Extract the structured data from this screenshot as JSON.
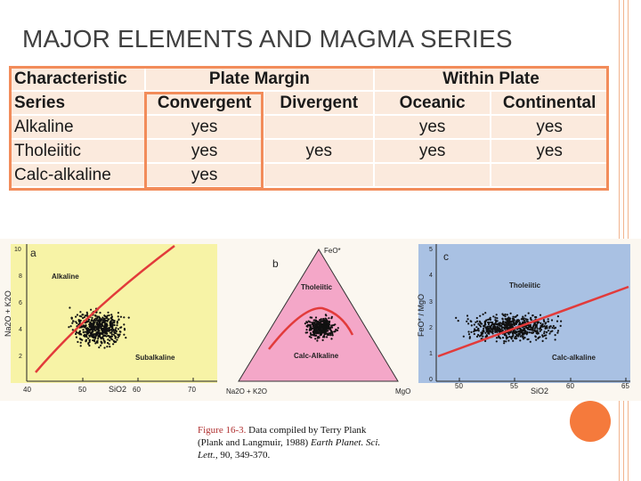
{
  "slide": {
    "title": "MAJOR ELEMENTS AND MAGMA SERIES"
  },
  "table": {
    "header1": [
      "Characteristic",
      "Plate Margin",
      "Within Plate"
    ],
    "header2": [
      "Series",
      "Convergent",
      "Divergent",
      "Oceanic",
      "Continental"
    ],
    "rows": [
      {
        "series": "Alkaline",
        "convergent": "yes",
        "divergent": "",
        "oceanic": "yes",
        "continental": "yes"
      },
      {
        "series": "Tholeiitic",
        "convergent": "yes",
        "divergent": "yes",
        "oceanic": "yes",
        "continental": "yes"
      },
      {
        "series": "Calc-alkaline",
        "convergent": "yes",
        "divergent": "",
        "oceanic": "",
        "continental": ""
      }
    ]
  },
  "figure": {
    "panel_a": {
      "letter": "a",
      "ylabel": "Na2O + K2O",
      "xlabel": "SiO2",
      "x_ticks": [
        "40",
        "50",
        "60",
        "70"
      ],
      "y_ticks": [
        "10",
        "8",
        "6",
        "4",
        "2"
      ],
      "label_top": "Alkaline",
      "label_bottom": "Subalkaline",
      "bg": "#f7f3a6"
    },
    "panel_b": {
      "letter": "b",
      "apex_top": "FeO*",
      "apex_left": "Na2O + K2O",
      "apex_right": "MgO",
      "label_top": "Tholeiitic",
      "label_bottom": "Calc-Alkaline",
      "fill": "#f4a7c8"
    },
    "panel_c": {
      "letter": "c",
      "ylabel": "FeO* / MgO",
      "xlabel": "SiO2",
      "x_ticks": [
        "50",
        "55",
        "60",
        "65"
      ],
      "y_ticks": [
        "5",
        "4",
        "3",
        "2",
        "1",
        "0"
      ],
      "label_top": "Tholeiitic",
      "label_bottom": "Calc-alkaline",
      "bg": "#a9c1e3"
    },
    "boundary_color": "#e23b3b"
  },
  "caption": {
    "ref": "Figure 16-3.",
    "text": " Data compiled by Terry Plank (Plank and Langmuir, 1988) ",
    "journal": "Earth Planet. Sci. Lett.",
    "rest": ", 90, 349-370."
  }
}
